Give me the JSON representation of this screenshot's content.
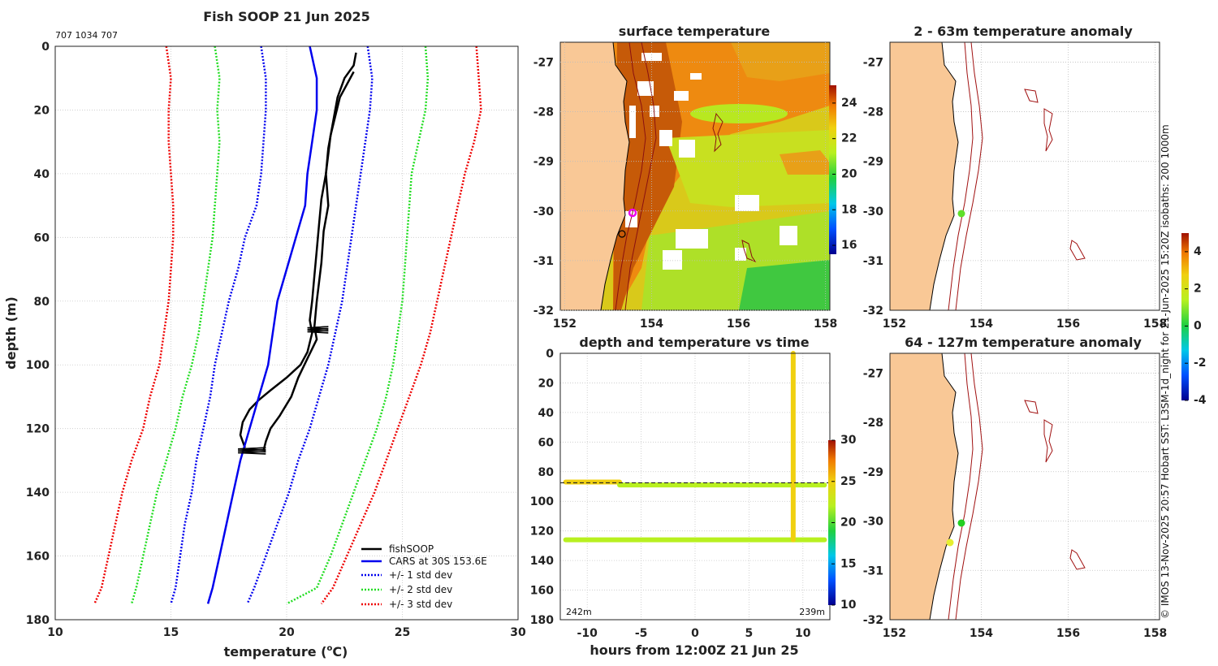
{
  "chart_data": [
    {
      "id": "profile",
      "type": "line",
      "title": "Fish SOOP 21 Jun 2025",
      "subtitle": "707 1034 707",
      "xlabel": "temperature (",
      "xlabel_sup": "o",
      "xlabel_end": "C)",
      "ylabel": "depth (m)",
      "xlim": [
        10,
        30
      ],
      "ylim": [
        0,
        180
      ],
      "xticks": [
        10,
        15,
        20,
        25,
        30
      ],
      "yticks": [
        0,
        20,
        40,
        60,
        80,
        100,
        120,
        140,
        160,
        180
      ],
      "legend_position": "bottom-right",
      "series": [
        {
          "name": "fishSOOP",
          "color": "#000000",
          "style": "solid",
          "points": [
            [
              23.0,
              2
            ],
            [
              22.9,
              6
            ],
            [
              22.5,
              10
            ],
            [
              22.2,
              16
            ],
            [
              22.0,
              24
            ],
            [
              21.8,
              32
            ],
            [
              21.7,
              40
            ],
            [
              21.5,
              48
            ],
            [
              21.4,
              56
            ],
            [
              21.3,
              64
            ],
            [
              21.2,
              72
            ],
            [
              21.1,
              80
            ],
            [
              21.0,
              86
            ],
            [
              21.1,
              90
            ],
            [
              20.9,
              96
            ],
            [
              20.6,
              100
            ],
            [
              20.0,
              104
            ],
            [
              19.3,
              108
            ],
            [
              18.8,
              111
            ],
            [
              18.4,
              114
            ],
            [
              18.1,
              118
            ],
            [
              18.0,
              122
            ],
            [
              18.2,
              126
            ]
          ]
        },
        {
          "name": "fishSOOP descent",
          "color": "#000000",
          "style": "solid",
          "no_legend": true,
          "points": [
            [
              22.9,
              8
            ],
            [
              22.3,
              16
            ],
            [
              21.9,
              28
            ],
            [
              21.7,
              40
            ],
            [
              21.8,
              50
            ],
            [
              21.6,
              58
            ],
            [
              21.5,
              68
            ],
            [
              21.3,
              80
            ],
            [
              21.2,
              88
            ],
            [
              21.3,
              92
            ],
            [
              20.9,
              98
            ],
            [
              20.5,
              104
            ],
            [
              20.2,
              110
            ],
            [
              19.7,
              116
            ],
            [
              19.3,
              120
            ],
            [
              19.1,
              124
            ],
            [
              19.0,
              127
            ]
          ]
        },
        {
          "name": "CARS at 30S 153.6E",
          "color": "#0000ee",
          "style": "solid",
          "points": [
            [
              21.0,
              0
            ],
            [
              21.3,
              10
            ],
            [
              21.3,
              20
            ],
            [
              21.1,
              30
            ],
            [
              20.9,
              40
            ],
            [
              20.8,
              50
            ],
            [
              20.4,
              60
            ],
            [
              20.0,
              70
            ],
            [
              19.6,
              80
            ],
            [
              19.4,
              90
            ],
            [
              19.2,
              100
            ],
            [
              18.8,
              110
            ],
            [
              18.4,
              120
            ],
            [
              18.0,
              130
            ],
            [
              17.7,
              140
            ],
            [
              17.4,
              150
            ],
            [
              17.1,
              160
            ],
            [
              16.8,
              170
            ],
            [
              16.6,
              175
            ]
          ]
        },
        {
          "name": "+/- 1 std dev",
          "color": "#0000ee",
          "style": "dotted",
          "group": "std1",
          "points": [
            [
              18.9,
              0
            ],
            [
              19.1,
              10
            ],
            [
              19.1,
              20
            ],
            [
              19.0,
              30
            ],
            [
              18.9,
              40
            ],
            [
              18.7,
              50
            ],
            [
              18.2,
              60
            ],
            [
              17.9,
              70
            ],
            [
              17.5,
              80
            ],
            [
              17.2,
              90
            ],
            [
              16.9,
              100
            ],
            [
              16.7,
              110
            ],
            [
              16.4,
              120
            ],
            [
              16.1,
              130
            ],
            [
              15.9,
              140
            ],
            [
              15.6,
              150
            ],
            [
              15.4,
              160
            ],
            [
              15.2,
              170
            ],
            [
              15.0,
              175
            ]
          ]
        },
        {
          "name": "+/- 1 std dev upper",
          "color": "#0000ee",
          "style": "dotted",
          "no_legend": true,
          "points": [
            [
              23.5,
              0
            ],
            [
              23.7,
              10
            ],
            [
              23.6,
              20
            ],
            [
              23.4,
              30
            ],
            [
              23.2,
              40
            ],
            [
              23.0,
              50
            ],
            [
              22.8,
              60
            ],
            [
              22.6,
              70
            ],
            [
              22.4,
              80
            ],
            [
              22.1,
              90
            ],
            [
              21.8,
              100
            ],
            [
              21.4,
              110
            ],
            [
              21.0,
              120
            ],
            [
              20.5,
              130
            ],
            [
              20.1,
              140
            ],
            [
              19.6,
              150
            ],
            [
              19.1,
              160
            ],
            [
              18.6,
              170
            ],
            [
              18.3,
              175
            ]
          ]
        },
        {
          "name": "+/- 2 std dev",
          "color": "#22dd22",
          "style": "dotted",
          "points": [
            [
              16.9,
              0
            ],
            [
              17.1,
              10
            ],
            [
              17.0,
              20
            ],
            [
              17.1,
              30
            ],
            [
              17.0,
              40
            ],
            [
              16.9,
              50
            ],
            [
              16.8,
              60
            ],
            [
              16.6,
              70
            ],
            [
              16.4,
              80
            ],
            [
              16.2,
              90
            ],
            [
              15.9,
              100
            ],
            [
              15.5,
              110
            ],
            [
              15.2,
              120
            ],
            [
              14.8,
              130
            ],
            [
              14.4,
              140
            ],
            [
              14.1,
              150
            ],
            [
              13.8,
              160
            ],
            [
              13.5,
              170
            ],
            [
              13.3,
              175
            ]
          ]
        },
        {
          "name": "+/- 2 std dev upper",
          "color": "#22dd22",
          "style": "dotted",
          "no_legend": true,
          "points": [
            [
              26.0,
              0
            ],
            [
              26.1,
              10
            ],
            [
              26.0,
              20
            ],
            [
              25.7,
              30
            ],
            [
              25.4,
              40
            ],
            [
              25.3,
              50
            ],
            [
              25.2,
              60
            ],
            [
              25.1,
              70
            ],
            [
              25.0,
              80
            ],
            [
              24.8,
              90
            ],
            [
              24.6,
              100
            ],
            [
              24.3,
              110
            ],
            [
              23.9,
              120
            ],
            [
              23.4,
              130
            ],
            [
              22.9,
              140
            ],
            [
              22.4,
              150
            ],
            [
              21.9,
              160
            ],
            [
              21.3,
              170
            ],
            [
              20.0,
              175
            ]
          ]
        },
        {
          "name": "+/- 3 std dev",
          "color": "#ee0000",
          "style": "dotted",
          "points": [
            [
              14.8,
              0
            ],
            [
              15.0,
              10
            ],
            [
              14.9,
              20
            ],
            [
              14.9,
              30
            ],
            [
              15.0,
              40
            ],
            [
              15.1,
              50
            ],
            [
              15.1,
              60
            ],
            [
              15.0,
              70
            ],
            [
              14.9,
              80
            ],
            [
              14.7,
              90
            ],
            [
              14.5,
              100
            ],
            [
              14.1,
              110
            ],
            [
              13.8,
              120
            ],
            [
              13.3,
              130
            ],
            [
              12.9,
              140
            ],
            [
              12.6,
              150
            ],
            [
              12.3,
              160
            ],
            [
              12.0,
              170
            ],
            [
              11.7,
              175
            ]
          ]
        },
        {
          "name": "+/- 3 std dev upper",
          "color": "#ee0000",
          "style": "dotted",
          "no_legend": true,
          "points": [
            [
              28.2,
              0
            ],
            [
              28.3,
              10
            ],
            [
              28.4,
              20
            ],
            [
              28.1,
              30
            ],
            [
              27.7,
              40
            ],
            [
              27.4,
              50
            ],
            [
              27.1,
              60
            ],
            [
              26.8,
              70
            ],
            [
              26.5,
              80
            ],
            [
              26.2,
              90
            ],
            [
              25.8,
              100
            ],
            [
              25.3,
              110
            ],
            [
              24.8,
              120
            ],
            [
              24.3,
              130
            ],
            [
              23.8,
              140
            ],
            [
              23.2,
              150
            ],
            [
              22.6,
              160
            ],
            [
              22.0,
              170
            ],
            [
              21.5,
              175
            ]
          ]
        }
      ],
      "legend": [
        "fishSOOP",
        "CARS at 30S 153.6E",
        "+/- 1 std dev",
        "+/- 2 std dev",
        "+/- 3 std dev"
      ]
    },
    {
      "id": "sst-map",
      "type": "heatmap",
      "title": "surface temperature",
      "xlim": [
        151.9,
        158.1
      ],
      "ylim": [
        -32,
        -26.6
      ],
      "xticks": [
        152,
        154,
        156,
        158
      ],
      "yticks": [
        -27,
        -28,
        -29,
        -30,
        -31,
        -32
      ],
      "colorbar": {
        "min": 15.5,
        "max": 25,
        "ticks": [
          16,
          18,
          20,
          22,
          24
        ]
      },
      "marker": {
        "lon": 153.6,
        "lat": -30.05,
        "color": "#ee00ee"
      }
    },
    {
      "id": "anomaly-shallow",
      "type": "heatmap",
      "title": "2 - 63m temperature anomaly",
      "xlim": [
        151.9,
        158.1
      ],
      "ylim": [
        -32,
        -26.6
      ],
      "xticks": [
        152,
        154,
        156,
        158
      ],
      "yticks": [
        -27,
        -28,
        -29,
        -30,
        -31,
        -32
      ],
      "points": [
        {
          "lon": 153.5,
          "lat": -30.02,
          "value": 0.8
        }
      ]
    },
    {
      "id": "depth-time",
      "type": "scatter",
      "title": "depth and temperature vs time",
      "xlabel": "hours from 12:00Z 21 Jun 25",
      "xlim": [
        -12.5,
        12.5
      ],
      "ylim": [
        0,
        180
      ],
      "xticks": [
        -10,
        -5,
        0,
        5,
        10
      ],
      "yticks": [
        0,
        20,
        40,
        60,
        80,
        100,
        120,
        140,
        160,
        180
      ],
      "colorbar": {
        "min": 10,
        "max": 30,
        "ticks": [
          10,
          15,
          20,
          25,
          30
        ]
      },
      "annotations": [
        "242m",
        "239m"
      ],
      "segments": [
        {
          "x0": -12,
          "x1": -7,
          "depth": 87,
          "temp": 23.5
        },
        {
          "x0": -7,
          "x1": 12,
          "depth": 89,
          "temp": 21.5
        },
        {
          "x0": -12,
          "x1": 12,
          "depth": 126,
          "temp": 19.5
        },
        {
          "x0": 9.1,
          "x1": 9.1,
          "depth_range": [
            0,
            126
          ],
          "temp": 22.5
        }
      ],
      "dashed_level": 87.5
    },
    {
      "id": "anomaly-deep",
      "type": "heatmap",
      "title": "64 - 127m temperature anomaly",
      "xlim": [
        151.9,
        158.1
      ],
      "ylim": [
        -32,
        -26.6
      ],
      "xticks": [
        152,
        154,
        156,
        158
      ],
      "yticks": [
        -27,
        -28,
        -29,
        -30,
        -31,
        -32
      ],
      "points": [
        {
          "lon": 153.5,
          "lat": -30.02,
          "value": 0.8
        },
        {
          "lon": 153.25,
          "lat": -30.55,
          "value": 2.2
        }
      ],
      "colorbar": {
        "min": -4,
        "max": 5,
        "ticks": [
          -4,
          -2,
          0,
          2,
          4
        ]
      }
    }
  ],
  "credit": "© IMOS 13-Nov-2025 20:57 Hobart SST: L3SM-1d_night for 21-Jun-2025 15:20Z isobaths: 200  1000m"
}
